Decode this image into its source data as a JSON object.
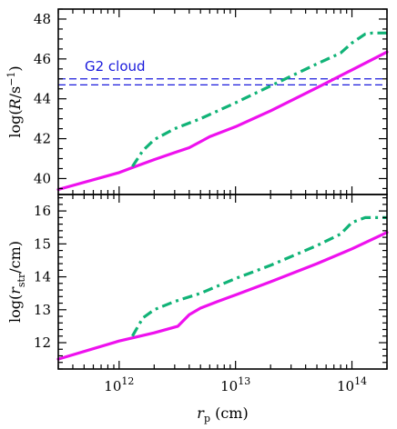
{
  "chart_data": [
    {
      "type": "line",
      "panel": "top",
      "ylabel": "log(R/s⁻¹)",
      "ylim": [
        39.2,
        48.5
      ],
      "yticks": [
        40,
        42,
        44,
        46,
        48
      ],
      "xscale": "log",
      "xlim": [
        300000000000.0,
        200000000000000.0
      ],
      "annotation": {
        "text": "G2 cloud",
        "color": "#1a1adc"
      },
      "hlines": [
        {
          "y": 45.0,
          "style": "dashed",
          "color": "#1a1adc"
        },
        {
          "y": 44.7,
          "style": "dashed",
          "color": "#1a1adc"
        }
      ],
      "series": [
        {
          "style": "solid",
          "color": "#ee11ee",
          "x": [
            300000000000.0,
            1000000000000.0,
            1300000000000.0,
            2000000000000.0,
            3000000000000.0,
            4000000000000.0,
            5000000000000.0,
            6000000000000.0,
            10000000000000.0,
            20000000000000.0,
            50000000000000.0,
            100000000000000.0,
            200000000000000.0
          ],
          "y": [
            39.45,
            40.3,
            40.55,
            40.95,
            41.3,
            41.55,
            41.85,
            42.1,
            42.6,
            43.4,
            44.55,
            45.45,
            46.35
          ]
        },
        {
          "style": "dashdot",
          "color": "#11b377",
          "x": [
            1300000000000.0,
            1600000000000.0,
            2000000000000.0,
            3000000000000.0,
            5000000000000.0,
            10000000000000.0,
            20000000000000.0,
            50000000000000.0,
            80000000000000.0,
            100000000000000.0,
            130000000000000.0,
            150000000000000.0,
            200000000000000.0
          ],
          "y": [
            40.6,
            41.4,
            41.95,
            42.5,
            43.0,
            43.8,
            44.65,
            45.75,
            46.3,
            46.8,
            47.25,
            47.3,
            47.3
          ]
        }
      ]
    },
    {
      "type": "line",
      "panel": "bottom",
      "ylabel": "log(r_str/cm)",
      "ylim": [
        11.2,
        16.5
      ],
      "yticks": [
        12,
        13,
        14,
        15,
        16
      ],
      "xlabel": "r_p (cm)",
      "xscale": "log",
      "xlim": [
        300000000000.0,
        200000000000000.0
      ],
      "xticks": [
        {
          "value": 1000000000000.0,
          "label": "10",
          "exp": "12"
        },
        {
          "value": 10000000000000.0,
          "label": "10",
          "exp": "13"
        },
        {
          "value": 100000000000000.0,
          "label": "10",
          "exp": "14"
        }
      ],
      "series": [
        {
          "style": "solid",
          "color": "#ee11ee",
          "x": [
            300000000000.0,
            1000000000000.0,
            2000000000000.0,
            3200000000000.0,
            4000000000000.0,
            5000000000000.0,
            7000000000000.0,
            10000000000000.0,
            20000000000000.0,
            50000000000000.0,
            100000000000000.0,
            200000000000000.0
          ],
          "y": [
            11.5,
            12.05,
            12.3,
            12.5,
            12.85,
            13.05,
            13.25,
            13.45,
            13.85,
            14.4,
            14.85,
            15.35
          ]
        },
        {
          "style": "dashdot",
          "color": "#11b377",
          "x": [
            1300000000000.0,
            1600000000000.0,
            2000000000000.0,
            3000000000000.0,
            5000000000000.0,
            10000000000000.0,
            20000000000000.0,
            50000000000000.0,
            80000000000000.0,
            100000000000000.0,
            130000000000000.0,
            150000000000000.0,
            200000000000000.0
          ],
          "y": [
            12.2,
            12.75,
            13.0,
            13.25,
            13.5,
            13.95,
            14.35,
            14.95,
            15.3,
            15.65,
            15.8,
            15.8,
            15.8
          ]
        }
      ]
    }
  ]
}
